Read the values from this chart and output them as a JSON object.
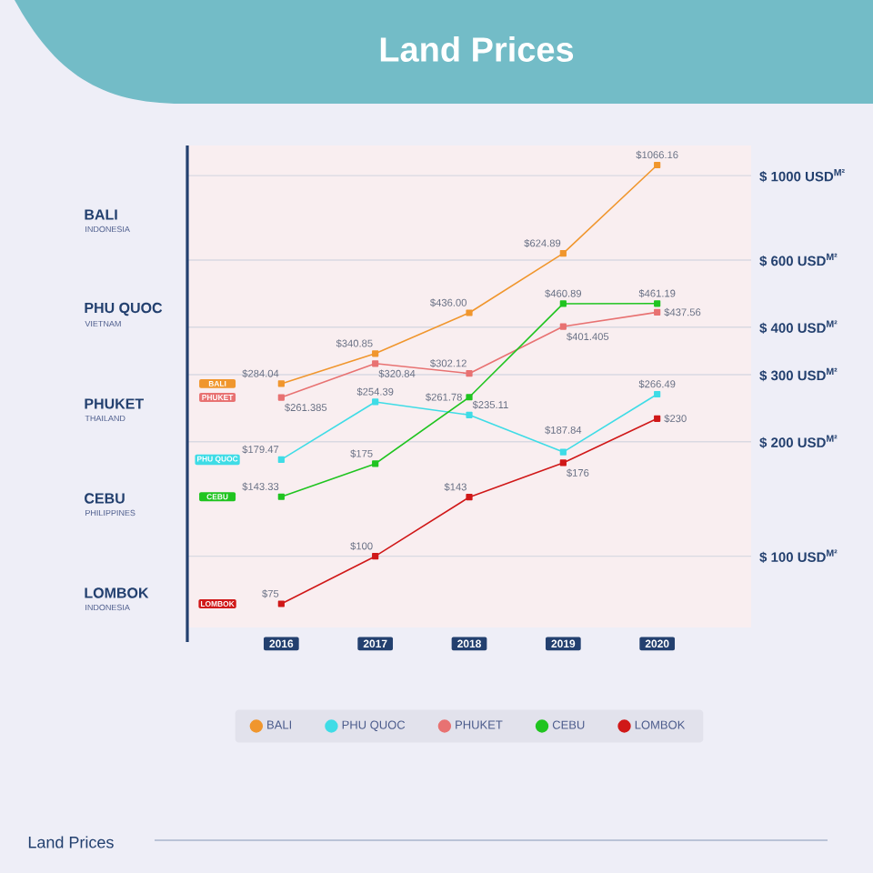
{
  "chart_data": {
    "type": "line",
    "title": "Land Prices",
    "categories": [
      "2016",
      "2017",
      "2018",
      "2019",
      "2020"
    ],
    "series": [
      {
        "name": "BALI",
        "color": "#f0962d",
        "values": [
          284.04,
          340.85,
          436.0,
          624.89,
          1066.16
        ],
        "value_labels": [
          "$284.04",
          "$340.85",
          "$436.00",
          "$624.89",
          "$1066.16"
        ]
      },
      {
        "name": "PHU QUOC",
        "color": "#3fdce6",
        "values": [
          179.47,
          254.39,
          235.11,
          187.84,
          266.49
        ],
        "value_labels": [
          "$179.47",
          "$254.39",
          "$235.11",
          "$187.84",
          "$266.49"
        ]
      },
      {
        "name": "PHUKET",
        "color": "#e87272",
        "values": [
          261.385,
          320.84,
          302.12,
          401.405,
          437.56
        ],
        "value_labels": [
          "$261.385",
          "$320.84",
          "$302.12",
          "$401.405",
          "$437.56"
        ]
      },
      {
        "name": "CEBU",
        "color": "#20c420",
        "values": [
          143.33,
          175,
          261.78,
          460.89,
          461.19
        ],
        "value_labels": [
          "$143.33",
          "$175",
          "$261.78",
          "$460.89",
          "$461.19"
        ]
      },
      {
        "name": "LOMBOK",
        "color": "#d01818",
        "values": [
          75,
          100,
          143,
          176,
          230
        ],
        "value_labels": [
          "$75",
          "$100",
          "$143",
          "$176",
          "$230"
        ]
      }
    ],
    "ylim": [
      65,
      1200
    ],
    "log": true,
    "yticks": [
      {
        "value": 100,
        "label": "$ 100 USD$^{M²}$"
      },
      {
        "value": 200,
        "label": "$ 200 USD$^{M²}$"
      },
      {
        "value": 300,
        "label": "$ 300 USD$^{M²}$"
      },
      {
        "value": 400,
        "label": "$ 400 USD$^{M²}$"
      },
      {
        "value": 600,
        "label": "$ 600 USD$^{M²}$"
      },
      {
        "value": 1000,
        "label": "$ 1000 USD$^{M²}$"
      }
    ],
    "grid": "y",
    "legend": "bottom",
    "marker": "square",
    "line_style": "solid",
    "annotations": [
      "BALI",
      "INDONESIA",
      "PHU QUOC",
      "VIETNAM",
      "PHUKET",
      "THAILAND",
      "CEBU",
      "PHILIPPINES",
      "LOMBOK",
      "INDONESIA",
      "Land Prices"
    ]
  }
}
